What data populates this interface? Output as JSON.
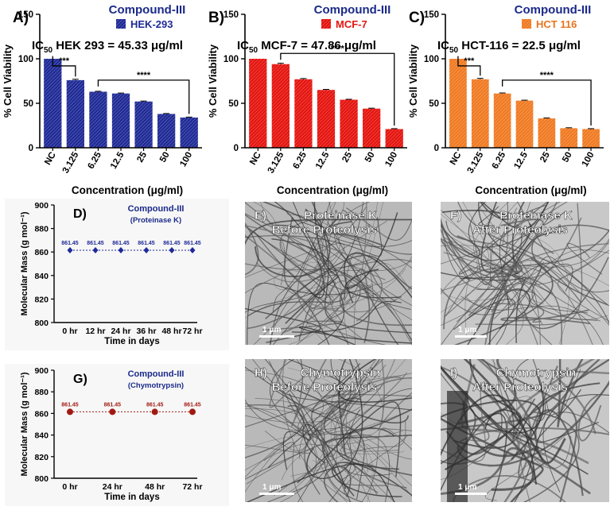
{
  "chart_data": [
    {
      "type": "bar",
      "panel_label": "A)",
      "title": "Compound-III",
      "legend": "HEK-293",
      "ic50_prefix": "IC",
      "ic50_sub": "50",
      "ic50_text": " HEK 293 = 45.33 μg/ml",
      "ylabel": "% Cell Viability",
      "xlabel": "Concentration (μg/ml)",
      "categories": [
        "NC",
        "3.125",
        "6.25",
        "12.5",
        "25",
        "50",
        "100"
      ],
      "values": [
        100,
        76,
        63,
        61,
        52,
        38,
        34
      ],
      "errors": [
        0,
        1,
        0.5,
        0.5,
        0.5,
        0.5,
        0.5
      ],
      "ylim": [
        0,
        150
      ],
      "yticks": [
        "0",
        "50",
        "100",
        "150"
      ],
      "color": "#1f2a96",
      "sig": [
        {
          "from": 0,
          "to": 1,
          "label": "***",
          "y": 92
        },
        {
          "from": 2,
          "to": 6,
          "label": "****",
          "y": 76
        }
      ]
    },
    {
      "type": "bar",
      "panel_label": "B)",
      "title": "Compound-III",
      "legend": "MCF-7",
      "ic50_prefix": "IC",
      "ic50_sub": "50",
      "ic50_text": " MCF-7 = 47.86 μg/ml",
      "ylabel": "% Cell Viability",
      "xlabel": "Concentration (μg/ml)",
      "categories": [
        "NC",
        "3.125",
        "6.25",
        "12.5",
        "25",
        "50",
        "100"
      ],
      "values": [
        100,
        94,
        77,
        65,
        54,
        44,
        21
      ],
      "errors": [
        0,
        1,
        0.8,
        0.6,
        0.5,
        0.5,
        0.5
      ],
      "ylim": [
        0,
        150
      ],
      "yticks": [
        "0",
        "50",
        "100",
        "150"
      ],
      "color": "#e5140f",
      "sig": [
        {
          "from": 1,
          "to": 6,
          "label": "****",
          "y": 106
        }
      ]
    },
    {
      "type": "bar",
      "panel_label": "C)",
      "title": "Compound-III",
      "legend": "HCT 116",
      "ic50_prefix": "IC",
      "ic50_sub": "50",
      "ic50_text": " HCT-116 = 22.5 μg/ml",
      "ylabel": "% Cell Viability",
      "xlabel": "Concentration (μg/ml)",
      "categories": [
        "NC",
        "3.125",
        "6.25",
        "12.5",
        "25",
        "50",
        "100"
      ],
      "values": [
        100,
        77,
        61,
        53,
        33,
        22,
        21
      ],
      "errors": [
        0,
        1,
        0.6,
        0.5,
        0.5,
        0.5,
        0.5
      ],
      "ylim": [
        0,
        150
      ],
      "yticks": [
        "0",
        "50",
        "100",
        "150"
      ],
      "color": "#f07a22",
      "sig": [
        {
          "from": 0,
          "to": 1,
          "label": "***",
          "y": 92
        },
        {
          "from": 2,
          "to": 6,
          "label": "****",
          "y": 76
        }
      ]
    },
    {
      "type": "line",
      "panel_label": "D)",
      "title": "Compound-III",
      "subtitle": "(Proteinase K)",
      "ylabel": "Molecular Mass (g mol⁻¹)",
      "xlabel": "Time in days",
      "categories": [
        "0 hr",
        "12 hr",
        "24 hr",
        "36 hr",
        "48 hr",
        "72 hr"
      ],
      "values": [
        861.45,
        861.45,
        861.45,
        861.45,
        861.45,
        861.45
      ],
      "point_labels": [
        "861.45",
        "861.45",
        "861.45",
        "861.45",
        "861.45",
        "861.45"
      ],
      "ylim": [
        800,
        900
      ],
      "yticks": [
        "800",
        "820",
        "840",
        "860",
        "880",
        "900"
      ],
      "marker": "diamond",
      "color": "#1f2a96"
    },
    {
      "type": "line",
      "panel_label": "G)",
      "title": "Compound-III",
      "subtitle": "(Chymotrypsin)",
      "ylabel": "Molecular Mass (g mol⁻¹)",
      "xlabel": "Time in days",
      "categories": [
        "0 hr",
        "24 hr",
        "48 hr",
        "72 hr"
      ],
      "values": [
        861.45,
        861.45,
        861.45,
        861.45
      ],
      "point_labels": [
        "861.45",
        "861.45",
        "861.45",
        "861.45"
      ],
      "ylim": [
        800,
        900
      ],
      "yticks": [
        "800",
        "820",
        "840",
        "860",
        "880",
        "900"
      ],
      "marker": "circle",
      "color": "#a01a12"
    }
  ],
  "micrographs": [
    {
      "label": "E)",
      "line1": "Proteinase K",
      "line2": "Before Proteolysis",
      "scale": "1 μm",
      "seed": 3
    },
    {
      "label": "F)",
      "line1": "Proteinase K",
      "line2": "After Proteolysis",
      "scale": "1 μm",
      "seed": 7
    },
    {
      "label": "H)",
      "line1": "Chymotrypsin",
      "line2": "Before Proteolysis",
      "scale": "1 μm",
      "seed": 11
    },
    {
      "label": "I)",
      "line1": "Chymotrypsin",
      "line2": "After Proteolysis",
      "scale": "1 μm",
      "seed": 19
    }
  ]
}
